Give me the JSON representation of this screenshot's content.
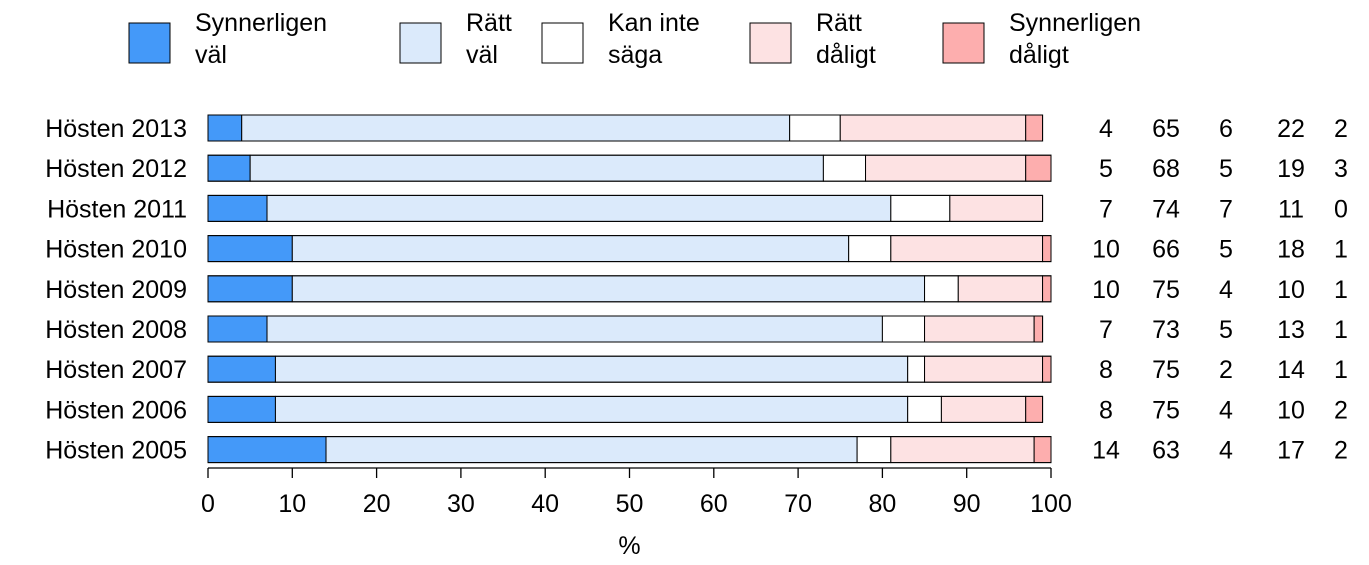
{
  "chart_data": {
    "type": "bar",
    "orientation": "horizontal",
    "stacked": true,
    "xlabel": "%",
    "xlim": [
      0,
      100
    ],
    "xticks": [
      0,
      10,
      20,
      30,
      40,
      50,
      60,
      70,
      80,
      90,
      100
    ],
    "grid": false,
    "legend_position": "top",
    "categories": [
      "Hösten 2013",
      "Hösten 2012",
      "Hösten 2011",
      "Hösten 2010",
      "Hösten 2009",
      "Hösten 2008",
      "Hösten 2007",
      "Hösten 2006",
      "Hösten 2005"
    ],
    "series": [
      {
        "name": "Synnerligen väl",
        "legend_lines": [
          "Synnerligen",
          "väl"
        ],
        "color": "#4499f9",
        "values": [
          4,
          5,
          7,
          10,
          10,
          7,
          8,
          8,
          14
        ]
      },
      {
        "name": "Rätt väl",
        "legend_lines": [
          "Rätt",
          "väl"
        ],
        "color": "#dbeafb",
        "values": [
          65,
          68,
          74,
          66,
          75,
          73,
          75,
          75,
          63
        ]
      },
      {
        "name": "Kan inte säga",
        "legend_lines": [
          "Kan inte",
          "säga"
        ],
        "color": "#ffffff",
        "values": [
          6,
          5,
          7,
          5,
          4,
          5,
          2,
          4,
          4
        ]
      },
      {
        "name": "Rätt dåligt",
        "legend_lines": [
          "Rätt",
          "dåligt"
        ],
        "color": "#fde2e3",
        "values": [
          22,
          19,
          11,
          18,
          10,
          13,
          14,
          10,
          17
        ]
      },
      {
        "name": "Synnerligen dåligt",
        "legend_lines": [
          "Synnerligen",
          "dåligt"
        ],
        "color": "#fdaeae",
        "values": [
          2,
          3,
          0,
          1,
          1,
          1,
          1,
          2,
          2
        ]
      }
    ]
  }
}
